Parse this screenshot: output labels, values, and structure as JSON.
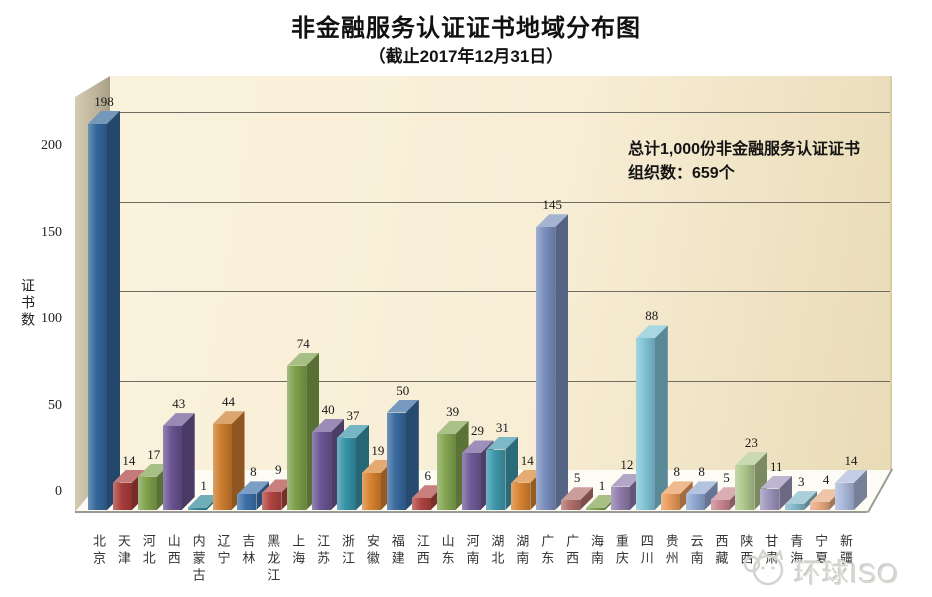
{
  "header": {
    "title": "非金融服务认证证书地域分布图",
    "subtitle": "（截止2017年12月31日）"
  },
  "annotation": {
    "line1": "总计1,000份非金融服务认证证书",
    "line2": "组织数：659个"
  },
  "watermark": {
    "text": "环球ISO"
  },
  "chart_data": {
    "type": "bar",
    "style": "3d",
    "title": "非金融服务认证证书地域分布图",
    "subtitle": "（截止2017年12月31日）",
    "xlabel": "",
    "ylabel": "证书数",
    "yticks": [
      0,
      50,
      100,
      150,
      200
    ],
    "ylim": [
      0,
      220
    ],
    "grid": true,
    "legend_position": "none",
    "total_certificates": 1000,
    "organization_count": 659,
    "categories": [
      "北京",
      "天津",
      "河北",
      "山西",
      "内蒙古",
      "辽宁",
      "吉林",
      "黑龙江",
      "上海",
      "江苏",
      "浙江",
      "安徽",
      "福建",
      "江西",
      "山东",
      "河南",
      "湖北",
      "湖南",
      "广东",
      "广西",
      "海南",
      "重庆",
      "四川",
      "贵州",
      "云南",
      "西藏",
      "陕西",
      "甘肃",
      "青海",
      "宁夏",
      "新疆"
    ],
    "values": [
      198,
      14,
      17,
      43,
      1,
      44,
      8,
      9,
      74,
      40,
      37,
      19,
      50,
      6,
      39,
      29,
      31,
      14,
      145,
      5,
      1,
      12,
      88,
      8,
      8,
      5,
      23,
      11,
      3,
      4,
      14
    ],
    "bar_colors": [
      "#33669A",
      "#A93D3B",
      "#7FA14C",
      "#695391",
      "#2E8698",
      "#CC7B2D",
      "#3C70A8",
      "#B04340",
      "#7DA04A",
      "#6B5595",
      "#3693A8",
      "#D8822F",
      "#38699F",
      "#B04340",
      "#82A44F",
      "#6F5A99",
      "#3E97AB",
      "#D8832F",
      "#7A8FBE",
      "#B2706D",
      "#7FA14C",
      "#8F7BAB",
      "#7FC3D6",
      "#E79A58",
      "#90A7D0",
      "#C8858F",
      "#AFC78B",
      "#9C94BB",
      "#82B9C9",
      "#E8A982",
      "#A9B7D9"
    ]
  }
}
